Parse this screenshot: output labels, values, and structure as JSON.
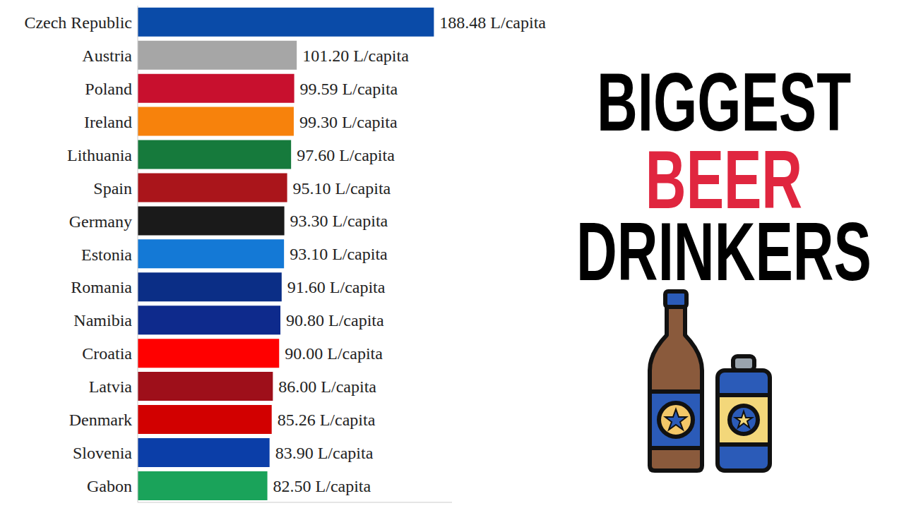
{
  "chart_data": {
    "type": "bar",
    "orientation": "horizontal",
    "title": "BIGGEST BEER DRINKERS",
    "categories": [
      "Czech Republic",
      "Austria",
      "Poland",
      "Ireland",
      "Lithuania",
      "Spain",
      "Germany",
      "Estonia",
      "Romania",
      "Namibia",
      "Croatia",
      "Latvia",
      "Denmark",
      "Slovenia",
      "Gabon"
    ],
    "values": [
      188.48,
      101.2,
      99.59,
      99.3,
      97.6,
      95.1,
      93.3,
      93.1,
      91.6,
      90.8,
      90.0,
      86.0,
      85.26,
      83.9,
      82.5
    ],
    "value_labels": [
      "188.48 L/capita",
      "101.20 L/capita",
      "99.59 L/capita",
      "99.30 L/capita",
      "97.60 L/capita",
      "95.10 L/capita",
      "93.30 L/capita",
      "93.10 L/capita",
      "91.60 L/capita",
      "90.80 L/capita",
      "90.00 L/capita",
      "86.00 L/capita",
      "85.26 L/capita",
      "83.90 L/capita",
      "82.50 L/capita"
    ],
    "colors": [
      "#0a4ba8",
      "#a6a6a6",
      "#c8102e",
      "#f7820c",
      "#167a3c",
      "#aa151b",
      "#1a1a1a",
      "#1479d6",
      "#0b2e86",
      "#0e2a8c",
      "#ff0000",
      "#9e0f1a",
      "#d20000",
      "#0b3ea8",
      "#1aa35a"
    ],
    "xlim": [
      0,
      200
    ],
    "data_labels": true,
    "tick_labels": "y"
  }
}
